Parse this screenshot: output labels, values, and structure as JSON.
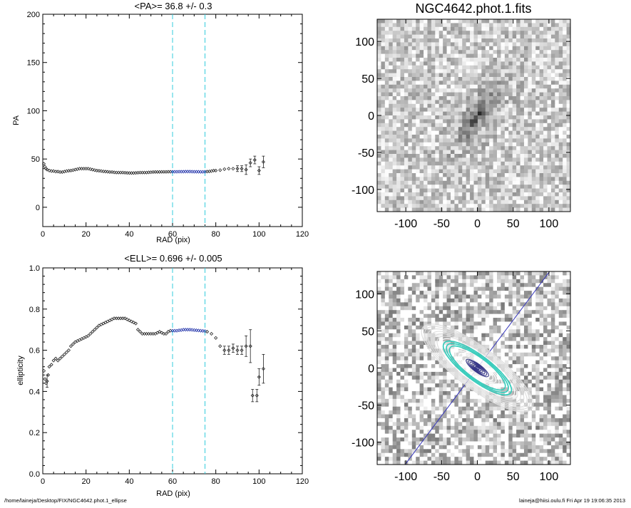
{
  "footer": {
    "path": "/home/laineja/Desktop/FIX/NGC4642.phot.1_ellipse",
    "stamp": "laineja@hiisi.oulu.fi  Fri Apr 19 19:06:35 2013"
  },
  "image_title": "NGC4642.phot.1.fits",
  "chart_data": [
    {
      "type": "scatter",
      "title": "<PA>=  36.8 +/-   0.3",
      "xlabel": "RAD (pix)",
      "ylabel": "PA",
      "xlim": [
        0,
        120
      ],
      "ylim": [
        -20,
        200
      ],
      "xticks": [
        "0",
        "20",
        "40",
        "60",
        "80",
        "100",
        "120"
      ],
      "yticks": [
        "0",
        "50",
        "100",
        "150",
        "200"
      ],
      "vlines": [
        60,
        75
      ],
      "fit_range": [
        60,
        75
      ],
      "points": [
        [
          0.5,
          45
        ],
        [
          1,
          42
        ],
        [
          1.5,
          40
        ],
        [
          2,
          39
        ],
        [
          3,
          38
        ],
        [
          4,
          37.5
        ],
        [
          5,
          37.5
        ],
        [
          6,
          37
        ],
        [
          7,
          37
        ],
        [
          8,
          36.5
        ],
        [
          9,
          36.5
        ],
        [
          10,
          37
        ],
        [
          11,
          37.5
        ],
        [
          12,
          37.8
        ],
        [
          13,
          38
        ],
        [
          14,
          38.5
        ],
        [
          15,
          39
        ],
        [
          16,
          39.5
        ],
        [
          17,
          40
        ],
        [
          18,
          40
        ],
        [
          19,
          40
        ],
        [
          20,
          40
        ],
        [
          21,
          40
        ],
        [
          22,
          39.5
        ],
        [
          23,
          39
        ],
        [
          24,
          38.5
        ],
        [
          25,
          38
        ],
        [
          26,
          37.8
        ],
        [
          27,
          37.5
        ],
        [
          28,
          37.2
        ],
        [
          29,
          37
        ],
        [
          30,
          36.8
        ],
        [
          31,
          36.5
        ],
        [
          32,
          36.5
        ],
        [
          33,
          36.2
        ],
        [
          34,
          36
        ],
        [
          35,
          36
        ],
        [
          36,
          36
        ],
        [
          37,
          36
        ],
        [
          38,
          35.8
        ],
        [
          39,
          35.6
        ],
        [
          40,
          35.5
        ],
        [
          41,
          35.5
        ],
        [
          42,
          35.5
        ],
        [
          43,
          35.6
        ],
        [
          44,
          35.8
        ],
        [
          45,
          36
        ],
        [
          46,
          36
        ],
        [
          47,
          36
        ],
        [
          48,
          36
        ],
        [
          49,
          36.2
        ],
        [
          50,
          36.3
        ],
        [
          51,
          36.5
        ],
        [
          52,
          36.6
        ],
        [
          53,
          36.6
        ],
        [
          54,
          36.6
        ],
        [
          55,
          36.7
        ],
        [
          56,
          36.7
        ],
        [
          57,
          36.7
        ],
        [
          58,
          36.8
        ],
        [
          59,
          36.8
        ],
        [
          60,
          36.8
        ],
        [
          61,
          36.8
        ],
        [
          62,
          36.8
        ],
        [
          63,
          36.9
        ],
        [
          64,
          36.9
        ],
        [
          65,
          36.9
        ],
        [
          66,
          37
        ],
        [
          67,
          37
        ],
        [
          68,
          37
        ],
        [
          69,
          36.9
        ],
        [
          70,
          36.8
        ],
        [
          71,
          36.8
        ],
        [
          72,
          36.8
        ],
        [
          73,
          36.7
        ],
        [
          74,
          36.7
        ],
        [
          75,
          36.8
        ],
        [
          76,
          37
        ],
        [
          77,
          37.2
        ],
        [
          78,
          37.5
        ],
        [
          79,
          38
        ],
        [
          80,
          38
        ],
        [
          82,
          38.5
        ],
        [
          84,
          39.5
        ],
        [
          86,
          40
        ],
        [
          88,
          40
        ],
        [
          90,
          40
        ],
        [
          92,
          40
        ],
        [
          94,
          39
        ],
        [
          96,
          46
        ],
        [
          98,
          49
        ],
        [
          100,
          38
        ],
        [
          102,
          47
        ]
      ],
      "error_bars": [
        {
          "x": 90,
          "y": 40,
          "err": 3
        },
        {
          "x": 92,
          "y": 40,
          "err": 3
        },
        {
          "x": 94,
          "y": 39,
          "err": 5
        },
        {
          "x": 96,
          "y": 46,
          "err": 4
        },
        {
          "x": 98,
          "y": 49,
          "err": 4
        },
        {
          "x": 100,
          "y": 38,
          "err": 4
        },
        {
          "x": 102,
          "y": 47,
          "err": 6
        }
      ]
    },
    {
      "type": "scatter",
      "title": "<ELL>= 0.696 +/-  0.005",
      "xlabel": "RAD (pix)",
      "ylabel": "ellipticity",
      "xlim": [
        0,
        120
      ],
      "ylim": [
        0,
        1
      ],
      "xticks": [
        "0",
        "20",
        "40",
        "60",
        "80",
        "100",
        "120"
      ],
      "yticks": [
        "0.0",
        "0.2",
        "0.4",
        "0.6",
        "0.8",
        "1.0"
      ],
      "vlines": [
        60,
        75
      ],
      "fit_range": [
        60,
        75
      ],
      "points": [
        [
          0.5,
          0.5
        ],
        [
          1,
          0.46
        ],
        [
          1.5,
          0.44
        ],
        [
          2,
          0.45
        ],
        [
          2.5,
          0.48
        ],
        [
          3,
          0.52
        ],
        [
          4,
          0.53
        ],
        [
          5,
          0.55
        ],
        [
          6,
          0.56
        ],
        [
          7,
          0.55
        ],
        [
          8,
          0.56
        ],
        [
          9,
          0.57
        ],
        [
          10,
          0.58
        ],
        [
          11,
          0.59
        ],
        [
          12,
          0.6
        ],
        [
          13,
          0.62
        ],
        [
          14,
          0.63
        ],
        [
          15,
          0.64
        ],
        [
          16,
          0.645
        ],
        [
          17,
          0.65
        ],
        [
          18,
          0.655
        ],
        [
          19,
          0.66
        ],
        [
          20,
          0.665
        ],
        [
          21,
          0.67
        ],
        [
          22,
          0.68
        ],
        [
          23,
          0.69
        ],
        [
          24,
          0.7
        ],
        [
          25,
          0.71
        ],
        [
          26,
          0.72
        ],
        [
          27,
          0.725
        ],
        [
          28,
          0.73
        ],
        [
          29,
          0.735
        ],
        [
          30,
          0.74
        ],
        [
          31,
          0.745
        ],
        [
          32,
          0.75
        ],
        [
          33,
          0.755
        ],
        [
          34,
          0.755
        ],
        [
          35,
          0.755
        ],
        [
          36,
          0.755
        ],
        [
          37,
          0.755
        ],
        [
          38,
          0.755
        ],
        [
          39,
          0.75
        ],
        [
          40,
          0.745
        ],
        [
          41,
          0.74
        ],
        [
          42,
          0.735
        ],
        [
          43,
          0.73
        ],
        [
          44,
          0.7
        ],
        [
          45,
          0.69
        ],
        [
          46,
          0.68
        ],
        [
          47,
          0.68
        ],
        [
          48,
          0.68
        ],
        [
          49,
          0.68
        ],
        [
          50,
          0.68
        ],
        [
          51,
          0.68
        ],
        [
          52,
          0.68
        ],
        [
          53,
          0.685
        ],
        [
          54,
          0.69
        ],
        [
          55,
          0.685
        ],
        [
          56,
          0.68
        ],
        [
          57,
          0.68
        ],
        [
          58,
          0.69
        ],
        [
          59,
          0.695
        ],
        [
          60,
          0.695
        ],
        [
          61,
          0.695
        ],
        [
          62,
          0.695
        ],
        [
          63,
          0.697
        ],
        [
          64,
          0.698
        ],
        [
          65,
          0.7
        ],
        [
          66,
          0.7
        ],
        [
          67,
          0.7
        ],
        [
          68,
          0.7
        ],
        [
          69,
          0.699
        ],
        [
          70,
          0.698
        ],
        [
          71,
          0.697
        ],
        [
          72,
          0.696
        ],
        [
          73,
          0.695
        ],
        [
          74,
          0.694
        ],
        [
          75,
          0.693
        ],
        [
          76,
          0.69
        ],
        [
          78,
          0.68
        ],
        [
          80,
          0.66
        ],
        [
          82,
          0.62
        ],
        [
          84,
          0.6
        ],
        [
          86,
          0.6
        ],
        [
          88,
          0.61
        ],
        [
          90,
          0.6
        ],
        [
          92,
          0.6
        ],
        [
          94,
          0.62
        ],
        [
          96,
          0.62
        ],
        [
          97,
          0.38
        ],
        [
          99,
          0.38
        ],
        [
          100,
          0.47
        ],
        [
          102,
          0.51
        ]
      ],
      "error_bars": [
        {
          "x": 2,
          "y": 0.45,
          "err": 0.03
        },
        {
          "x": 84,
          "y": 0.6,
          "err": 0.02
        },
        {
          "x": 86,
          "y": 0.6,
          "err": 0.02
        },
        {
          "x": 88,
          "y": 0.61,
          "err": 0.02
        },
        {
          "x": 90,
          "y": 0.6,
          "err": 0.02
        },
        {
          "x": 92,
          "y": 0.6,
          "err": 0.02
        },
        {
          "x": 94,
          "y": 0.62,
          "err": 0.05
        },
        {
          "x": 96,
          "y": 0.62,
          "err": 0.08
        },
        {
          "x": 97,
          "y": 0.38,
          "err": 0.03
        },
        {
          "x": 99,
          "y": 0.38,
          "err": 0.03
        },
        {
          "x": 100,
          "y": 0.47,
          "err": 0.04
        },
        {
          "x": 102,
          "y": 0.51,
          "err": 0.07
        }
      ]
    },
    {
      "type": "heatmap",
      "title": "NGC4642.phot.1.fits",
      "xlim": [
        -140,
        130
      ],
      "ylim": [
        -130,
        130
      ],
      "xticks": [
        "-100",
        "-50",
        "0",
        "50",
        "100"
      ],
      "yticks": [
        "100",
        "50",
        "0",
        "-50",
        "-100"
      ],
      "galaxy_center": [
        0,
        0
      ],
      "position_angle_deg": 36.8,
      "ellipticity": 0.696
    },
    {
      "type": "heatmap",
      "xlim": [
        -140,
        130
      ],
      "ylim": [
        -130,
        130
      ],
      "xticks": [
        "-100",
        "-50",
        "0",
        "50",
        "100"
      ],
      "yticks": [
        "100",
        "50",
        "0",
        "-50",
        "-100"
      ],
      "position_angle_deg": 36.8,
      "ellipticity": 0.696,
      "isophote_count": 18
    }
  ]
}
